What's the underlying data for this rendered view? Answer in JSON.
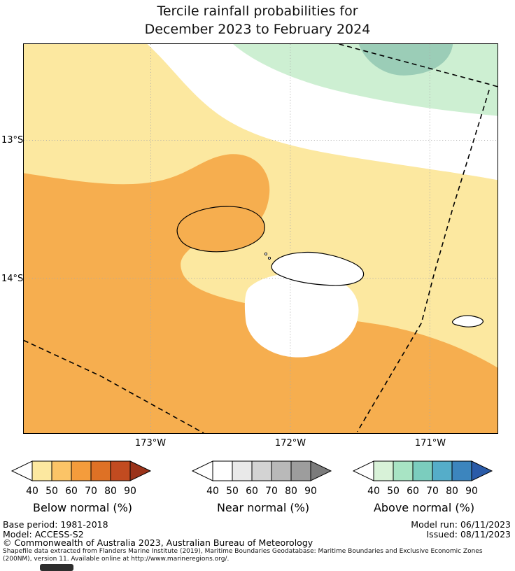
{
  "title": {
    "line1": "Tercile rainfall probabilities for",
    "line2": "December 2023 to February 2024"
  },
  "map": {
    "lat_labels": [
      "13°S",
      "14°S"
    ],
    "lon_labels": [
      "173°W",
      "172°W",
      "171°W"
    ]
  },
  "colors": {
    "below_40_50": "#FCE8A0",
    "below_50_60": "#F6AE4F",
    "above_40_50": "#CDEFD2",
    "above_50_60": "#9BCDB7",
    "neutral_white": "#FFFFFF",
    "grid": "#AAAAAA",
    "boundary": "#000000"
  },
  "legends": [
    {
      "label": "Below normal (%)",
      "ticks": [
        "40",
        "50",
        "60",
        "70",
        "80",
        "90"
      ],
      "left_arrow": "#FFFFFF",
      "segments": [
        "#FCE8A0",
        "#FBC467",
        "#F49C3C",
        "#DE7125",
        "#C24B20"
      ],
      "right_arrow": "#9B331A"
    },
    {
      "label": "Near normal (%)",
      "ticks": [
        "40",
        "50",
        "60",
        "70",
        "80",
        "90"
      ],
      "left_arrow": "#FFFFFF",
      "segments": [
        "#FFFFFF",
        "#E9E9E9",
        "#D3D3D3",
        "#B9B9B9",
        "#9D9D9D"
      ],
      "right_arrow": "#7B7B7B"
    },
    {
      "label": "Above normal (%)",
      "ticks": [
        "40",
        "50",
        "60",
        "70",
        "80",
        "90"
      ],
      "left_arrow": "#FFFFFF",
      "segments": [
        "#D8F2D8",
        "#A8E4C4",
        "#7BCDBE",
        "#55ADC9",
        "#3C85BE"
      ],
      "right_arrow": "#2A5BA8"
    }
  ],
  "footer": {
    "base_period": "Base period: 1981-2018",
    "model": "Model: ACCESS-S2",
    "model_run": "Model run: 06/11/2023",
    "issued": "Issued: 08/11/2023",
    "copyright": "© Commonwealth of Australia 2023, Australian Bureau of Meteorology",
    "shapefile_note": "Shapefile data extracted from Flanders Marine Institute (2019), Maritime Boundaries Geodatabase: Maritime Boundaries and Exclusive Economic Zones (200NM), version 11. Available online at http://www.marineregions.org/."
  }
}
